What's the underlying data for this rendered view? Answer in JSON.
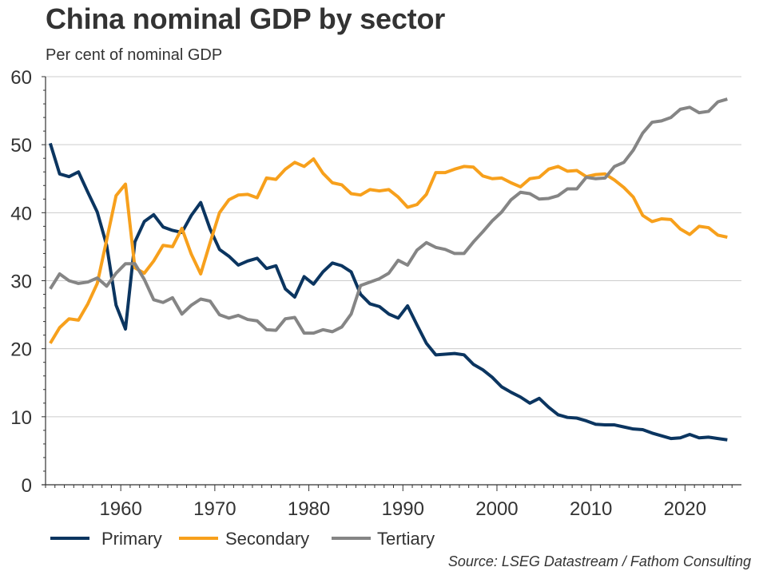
{
  "title": "China nominal GDP by sector",
  "subtitle": "Per cent of nominal GDP",
  "source": "Source: LSEG Datastream / Fathom Consulting",
  "chart_data": {
    "type": "line",
    "title": "China nominal GDP by sector",
    "subtitle": "Per cent of nominal GDP",
    "xlabel": "",
    "ylabel": "Per cent of nominal GDP",
    "ylim": [
      0,
      60
    ],
    "xlim": [
      1951.5,
      2025.5
    ],
    "yticks": [
      0,
      10,
      20,
      30,
      40,
      50,
      60
    ],
    "xticks": [
      1960,
      1970,
      1980,
      1990,
      2000,
      2010,
      2020
    ],
    "grid": "horizontal",
    "legend_position": "bottom",
    "x": [
      1952,
      1953,
      1954,
      1955,
      1956,
      1957,
      1958,
      1959,
      1960,
      1961,
      1962,
      1963,
      1964,
      1965,
      1966,
      1967,
      1968,
      1969,
      1970,
      1971,
      1972,
      1973,
      1974,
      1975,
      1976,
      1977,
      1978,
      1979,
      1980,
      1981,
      1982,
      1983,
      1984,
      1985,
      1986,
      1987,
      1988,
      1989,
      1990,
      1991,
      1992,
      1993,
      1994,
      1995,
      1996,
      1997,
      1998,
      1999,
      2000,
      2001,
      2002,
      2003,
      2004,
      2005,
      2006,
      2007,
      2008,
      2009,
      2010,
      2011,
      2012,
      2013,
      2014,
      2015,
      2016,
      2017,
      2018,
      2019,
      2020,
      2021,
      2022,
      2023,
      2024
    ],
    "series": [
      {
        "name": "Primary",
        "color": "#0b3560",
        "values": [
          50.2,
          45.7,
          45.3,
          46.0,
          43.0,
          40.1,
          35.2,
          26.4,
          22.9,
          35.7,
          38.7,
          39.7,
          37.9,
          37.4,
          37.1,
          39.6,
          41.5,
          37.6,
          34.6,
          33.6,
          32.3,
          32.9,
          33.3,
          31.8,
          32.2,
          28.8,
          27.6,
          30.6,
          29.5,
          31.3,
          32.6,
          32.2,
          31.3,
          28.0,
          26.6,
          26.2,
          25.1,
          24.5,
          26.3,
          23.5,
          20.8,
          19.1,
          19.2,
          19.3,
          19.1,
          17.7,
          16.9,
          15.8,
          14.4,
          13.6,
          12.9,
          12.0,
          12.7,
          11.4,
          10.3,
          9.9,
          9.8,
          9.4,
          8.9,
          8.8,
          8.8,
          8.5,
          8.2,
          8.1,
          7.6,
          7.2,
          6.8,
          6.9,
          7.4,
          6.9,
          7.0,
          6.8,
          6.6
        ]
      },
      {
        "name": "Secondary",
        "color": "#f7a01c",
        "values": [
          20.8,
          23.1,
          24.4,
          24.2,
          26.6,
          29.6,
          36.0,
          42.5,
          44.2,
          31.9,
          31.1,
          32.9,
          35.2,
          35.0,
          37.7,
          33.9,
          31.0,
          35.6,
          40.0,
          41.9,
          42.6,
          42.7,
          42.2,
          45.1,
          44.9,
          46.4,
          47.4,
          46.8,
          47.9,
          45.8,
          44.4,
          44.1,
          42.8,
          42.6,
          43.4,
          43.2,
          43.4,
          42.3,
          40.8,
          41.2,
          42.7,
          45.9,
          45.9,
          46.4,
          46.8,
          46.7,
          45.4,
          45.0,
          45.1,
          44.4,
          43.8,
          45.0,
          45.2,
          46.4,
          46.8,
          46.1,
          46.2,
          45.3,
          45.6,
          45.7,
          44.8,
          43.7,
          42.3,
          39.6,
          38.7,
          39.1,
          39.0,
          37.6,
          36.8,
          38.0,
          37.8,
          36.7,
          36.4
        ]
      },
      {
        "name": "Tertiary",
        "color": "#858585",
        "values": [
          28.8,
          31.0,
          30.0,
          29.6,
          29.8,
          30.4,
          29.2,
          31.1,
          32.5,
          32.5,
          30.2,
          27.2,
          26.8,
          27.5,
          25.1,
          26.4,
          27.3,
          27.0,
          25.0,
          24.5,
          24.9,
          24.3,
          24.1,
          22.8,
          22.7,
          24.4,
          24.6,
          22.3,
          22.3,
          22.8,
          22.5,
          23.2,
          25.1,
          29.3,
          29.8,
          30.3,
          31.1,
          33.0,
          32.3,
          34.5,
          35.6,
          34.9,
          34.6,
          34.0,
          34.0,
          35.7,
          37.2,
          38.8,
          40.1,
          41.9,
          43.0,
          42.8,
          42.0,
          42.1,
          42.5,
          43.5,
          43.5,
          45.2,
          45.0,
          45.1,
          46.8,
          47.4,
          49.2,
          51.7,
          53.3,
          53.5,
          54.0,
          55.2,
          55.5,
          54.7,
          54.9,
          56.3,
          56.7
        ]
      }
    ]
  }
}
